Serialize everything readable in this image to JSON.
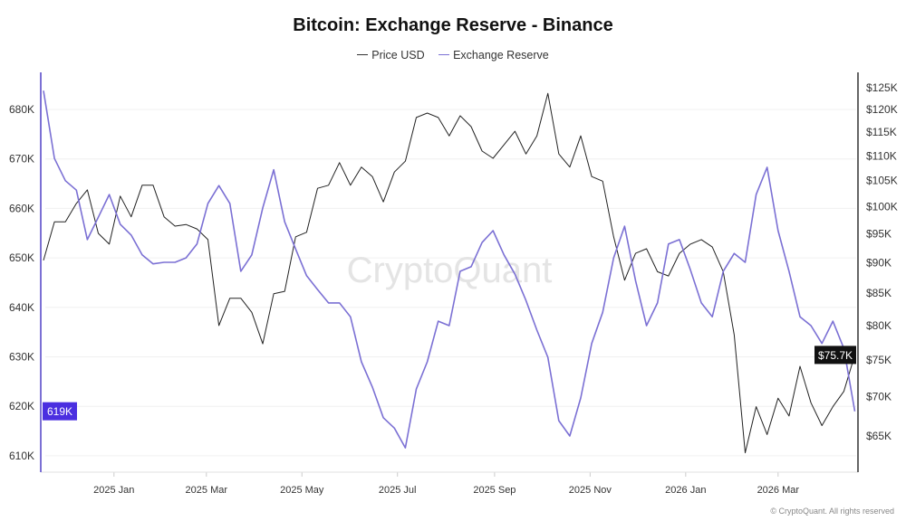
{
  "chart_data": {
    "type": "line",
    "title": "Bitcoin: Exchange Reserve - Binance",
    "watermark": "CryptoQuant",
    "footer": "© CryptoQuant. All rights reserved",
    "legend_position": "top",
    "grid": true,
    "x": [
      "2024-11-17",
      "2024-11-24",
      "2024-12-01",
      "2024-12-08",
      "2024-12-15",
      "2024-12-22",
      "2024-12-29",
      "2025-01-05",
      "2025-01-12",
      "2025-01-19",
      "2025-01-26",
      "2025-02-02",
      "2025-02-09",
      "2025-02-16",
      "2025-02-23",
      "2025-03-02",
      "2025-03-09",
      "2025-03-16",
      "2025-03-23",
      "2025-03-30",
      "2025-04-06",
      "2025-04-13",
      "2025-04-20",
      "2025-04-27",
      "2025-05-04",
      "2025-05-11",
      "2025-05-18",
      "2025-05-25",
      "2025-06-01",
      "2025-06-08",
      "2025-06-15",
      "2025-06-22",
      "2025-06-29",
      "2025-07-06",
      "2025-07-13",
      "2025-07-20",
      "2025-07-27",
      "2025-08-03",
      "2025-08-10",
      "2025-08-17",
      "2025-08-24",
      "2025-08-31",
      "2025-09-07",
      "2025-09-14",
      "2025-09-21",
      "2025-09-28",
      "2025-10-05",
      "2025-10-12",
      "2025-10-19",
      "2025-10-26",
      "2025-11-02",
      "2025-11-09",
      "2025-11-16",
      "2025-11-23",
      "2025-11-30",
      "2025-12-07",
      "2025-12-14",
      "2025-12-21",
      "2025-12-28",
      "2026-01-04",
      "2026-01-11",
      "2026-01-18",
      "2026-01-25",
      "2026-02-01",
      "2026-02-08",
      "2026-02-15",
      "2026-02-22",
      "2026-03-01",
      "2026-03-08",
      "2026-03-15",
      "2026-03-22",
      "2026-03-29",
      "2026-04-05",
      "2026-04-12",
      "2026-04-19"
    ],
    "x_ticks": [
      "2025 Jan",
      "2025 Mar",
      "2025 May",
      "2025 Jul",
      "2025 Sep",
      "2025 Nov",
      "2026 Jan",
      "2026 Mar"
    ],
    "x_tick_dates": [
      "2025-01-01",
      "2025-03-01",
      "2025-05-01",
      "2025-07-01",
      "2025-09-01",
      "2025-11-01",
      "2026-01-01",
      "2026-03-01"
    ],
    "y_left": {
      "label": "",
      "unit": "K",
      "range": [
        606,
        690
      ],
      "ticks": [
        "610K",
        "620K",
        "630K",
        "640K",
        "650K",
        "660K",
        "670K",
        "680K"
      ],
      "tick_values": [
        610,
        620,
        630,
        640,
        650,
        660,
        670,
        680
      ],
      "current_label": "619K",
      "current_value": 619
    },
    "y_right": {
      "label": "",
      "scale": "log",
      "range": [
        60.5,
        133
      ],
      "ticks": [
        "$65K",
        "$70K",
        "$75K",
        "$80K",
        "$85K",
        "$90K",
        "$95K",
        "$100K",
        "$105K",
        "$110K",
        "$115K",
        "$120K",
        "$125K"
      ],
      "tick_values": [
        65,
        70,
        75,
        80,
        85,
        90,
        95,
        100,
        105,
        110,
        115,
        120,
        125
      ],
      "current_label": "$75.7K",
      "current_value": 75.7
    },
    "series": [
      {
        "name": "Price USD",
        "axis": "right",
        "color": "#222222",
        "values": [
          90.4,
          97.2,
          97.2,
          100.6,
          103.2,
          95.1,
          93.2,
          102.0,
          98.1,
          104.1,
          104.1,
          98.1,
          96.4,
          96.7,
          95.9,
          94.0,
          80.0,
          84.2,
          84.2,
          82.0,
          77.3,
          84.9,
          85.3,
          94.5,
          95.3,
          103.5,
          104.1,
          108.6,
          104.1,
          107.7,
          105.8,
          100.9,
          106.7,
          108.9,
          118.2,
          119.2,
          118.2,
          114.2,
          118.6,
          116.2,
          111.0,
          109.5,
          112.3,
          115.2,
          110.4,
          114.2,
          123.7,
          110.4,
          107.7,
          114.2,
          105.8,
          104.9,
          94.5,
          87.1,
          91.6,
          92.4,
          88.5,
          87.8,
          91.6,
          93.2,
          94.0,
          92.7,
          88.5,
          78.6,
          63.0,
          68.7,
          65.2,
          69.8,
          67.5,
          74.1,
          69.2,
          66.3,
          68.7,
          70.7,
          75.7
        ]
      },
      {
        "name": "Exchange Reserve",
        "axis": "left",
        "color": "#7b70d4",
        "values": [
          683.8,
          670.1,
          665.6,
          663.7,
          653.7,
          658.2,
          662.8,
          656.8,
          654.6,
          650.6,
          648.8,
          649.1,
          649.1,
          650.0,
          652.8,
          661.0,
          664.6,
          661.0,
          647.3,
          650.6,
          660.1,
          667.8,
          657.3,
          651.8,
          646.4,
          643.6,
          640.9,
          640.9,
          638.1,
          629.0,
          623.9,
          617.7,
          615.6,
          611.6,
          623.5,
          629.0,
          637.2,
          636.3,
          647.3,
          648.2,
          653.1,
          655.5,
          650.6,
          646.7,
          641.4,
          635.4,
          629.9,
          617.1,
          614.0,
          621.7,
          632.7,
          639.0,
          650.0,
          656.4,
          645.4,
          636.3,
          640.9,
          652.8,
          653.7,
          647.6,
          640.9,
          638.1,
          647.3,
          650.9,
          649.1,
          662.8,
          668.3,
          655.5,
          647.3,
          638.1,
          636.3,
          632.7,
          637.2,
          631.7,
          619.0
        ]
      }
    ],
    "colors": {
      "reserve": "#7b70d4",
      "reserve_badge": "#4b2fe0",
      "price": "#222222",
      "price_badge": "#111111"
    }
  }
}
